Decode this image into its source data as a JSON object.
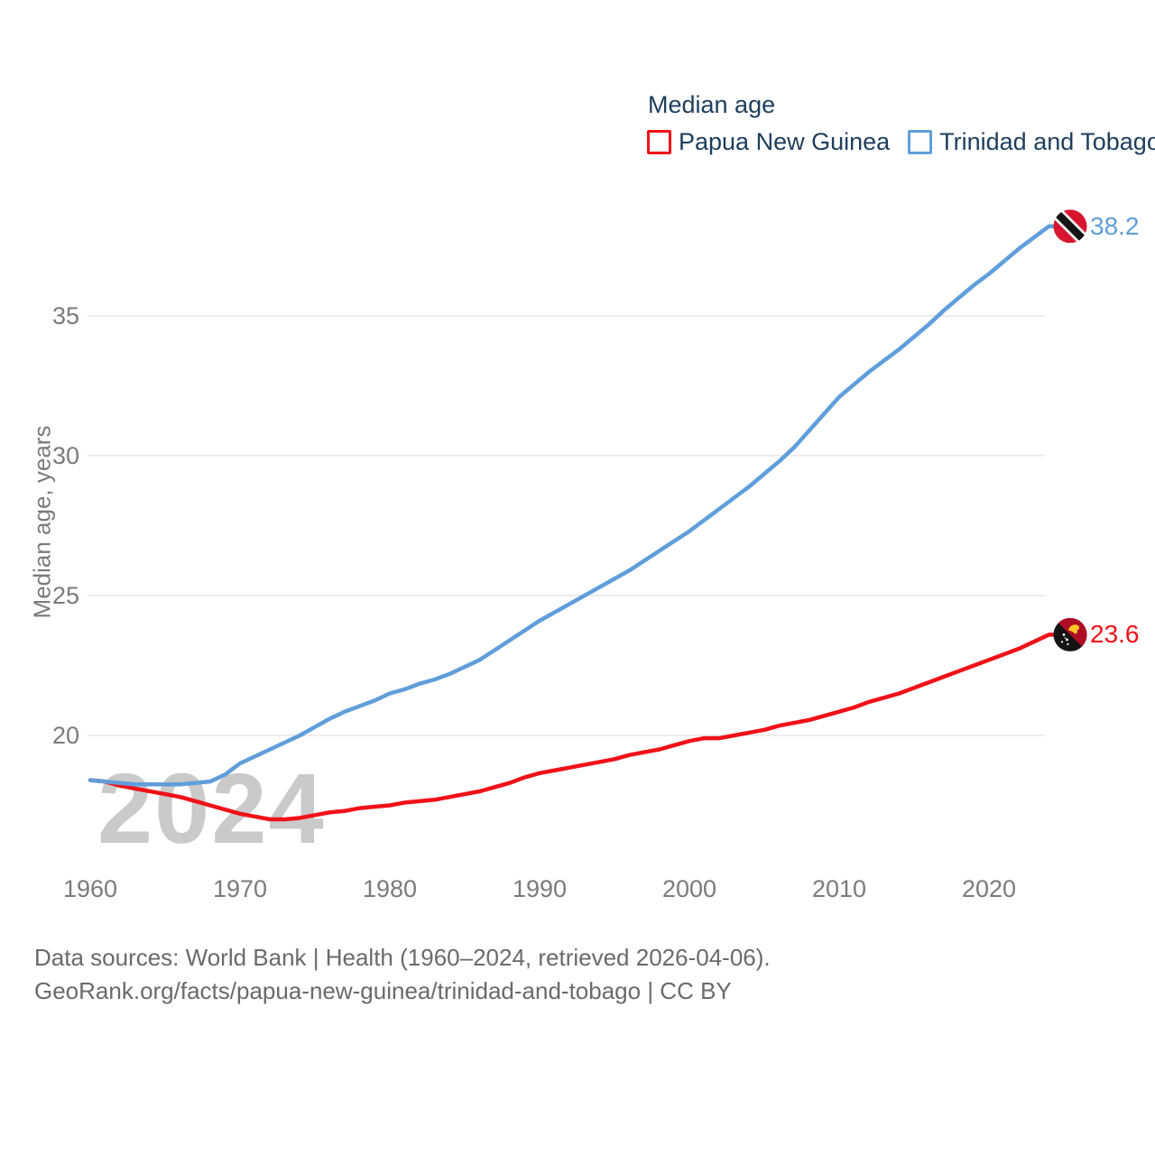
{
  "legend": {
    "title": "Median age",
    "items": [
      {
        "label": "Papua New Guinea",
        "color": "#f01118"
      },
      {
        "label": "Trinidad and Tobago",
        "color": "#5f9edb"
      }
    ]
  },
  "watermark": "2024",
  "source": {
    "line1": "Data sources: World Bank | Health (1960–2024, retrieved 2026-04-06).",
    "line2": "GeoRank.org/facts/papua-new-guinea/trinidad-and-tobago | CC BY"
  },
  "chart_data": {
    "type": "line",
    "title": "Median age",
    "xlabel": "",
    "ylabel": "Median age, years",
    "ylim": [
      16.5,
      39.5
    ],
    "yticks": [
      20,
      25,
      30,
      35
    ],
    "xticks": [
      1960,
      1970,
      1980,
      1990,
      2000,
      2010,
      2020
    ],
    "grid": "horizontal",
    "legend_position": "top-right",
    "x": [
      1960,
      1961,
      1962,
      1963,
      1964,
      1965,
      1966,
      1967,
      1968,
      1969,
      1970,
      1971,
      1972,
      1973,
      1974,
      1975,
      1976,
      1977,
      1978,
      1979,
      1980,
      1981,
      1982,
      1983,
      1984,
      1985,
      1986,
      1987,
      1988,
      1989,
      1990,
      1991,
      1992,
      1993,
      1994,
      1995,
      1996,
      1997,
      1998,
      1999,
      2000,
      2001,
      2002,
      2003,
      2004,
      2005,
      2006,
      2007,
      2008,
      2009,
      2010,
      2011,
      2012,
      2013,
      2014,
      2015,
      2016,
      2017,
      2018,
      2019,
      2020,
      2021,
      2022,
      2023,
      2024
    ],
    "series": [
      {
        "name": "Papua New Guinea",
        "flag": "papua-new-guinea",
        "color": "#f01118",
        "end_label": "23.6",
        "values": [
          18.4,
          18.35,
          18.2,
          18.1,
          18.0,
          17.9,
          17.8,
          17.65,
          17.5,
          17.35,
          17.2,
          17.1,
          17.0,
          17.0,
          17.05,
          17.15,
          17.25,
          17.3,
          17.4,
          17.45,
          17.5,
          17.6,
          17.65,
          17.7,
          17.8,
          17.9,
          18.0,
          18.15,
          18.3,
          18.5,
          18.65,
          18.75,
          18.85,
          18.95,
          19.05,
          19.15,
          19.3,
          19.4,
          19.5,
          19.65,
          19.8,
          19.9,
          19.9,
          20.0,
          20.1,
          20.2,
          20.35,
          20.45,
          20.55,
          20.7,
          20.85,
          21.0,
          21.2,
          21.35,
          21.5,
          21.7,
          21.9,
          22.1,
          22.3,
          22.5,
          22.7,
          22.9,
          23.1,
          23.35,
          23.6
        ]
      },
      {
        "name": "Trinidad and Tobago",
        "flag": "trinidad-and-tobago",
        "color": "#5f9edb",
        "end_label": "38.2",
        "values": [
          18.4,
          18.35,
          18.3,
          18.25,
          18.25,
          18.25,
          18.25,
          18.3,
          18.35,
          18.6,
          19.0,
          19.25,
          19.5,
          19.75,
          20.0,
          20.3,
          20.6,
          20.85,
          21.05,
          21.25,
          21.5,
          21.65,
          21.85,
          22.0,
          22.2,
          22.45,
          22.7,
          23.05,
          23.4,
          23.75,
          24.1,
          24.4,
          24.7,
          25.0,
          25.3,
          25.6,
          25.9,
          26.25,
          26.6,
          26.95,
          27.3,
          27.7,
          28.1,
          28.5,
          28.9,
          29.35,
          29.8,
          30.3,
          30.9,
          31.5,
          32.1,
          32.55,
          33.0,
          33.4,
          33.8,
          34.25,
          34.7,
          35.2,
          35.65,
          36.1,
          36.5,
          36.95,
          37.4,
          37.8,
          38.2
        ]
      }
    ]
  }
}
